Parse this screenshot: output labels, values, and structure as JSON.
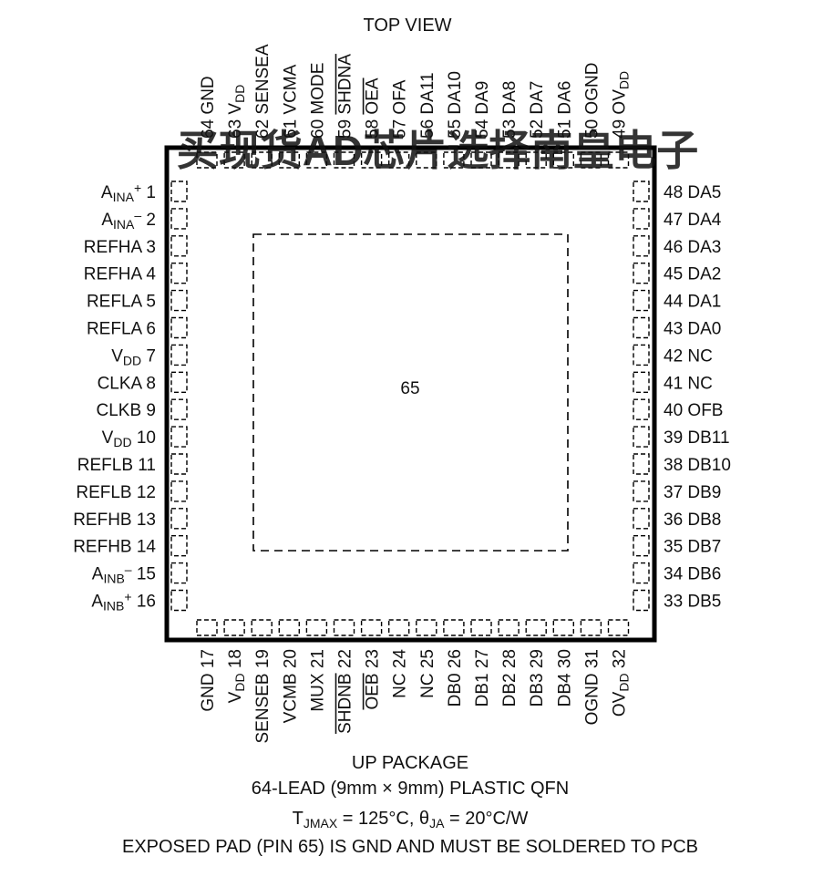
{
  "top_view_label": "TOP VIEW",
  "watermark": "买现货AD芯片选择南皇电子",
  "exposed_pad_label": "65",
  "pins": {
    "left": [
      {
        "segs": [
          [
            "A",
            ""
          ],
          [
            "INA",
            "sub"
          ],
          [
            "+",
            "sup"
          ],
          [
            " 1",
            ""
          ]
        ]
      },
      {
        "segs": [
          [
            "A",
            ""
          ],
          [
            "INA",
            "sub"
          ],
          [
            "–",
            "sup"
          ],
          [
            " 2",
            ""
          ]
        ]
      },
      {
        "segs": [
          [
            "REFHA 3",
            ""
          ]
        ]
      },
      {
        "segs": [
          [
            "REFHA 4",
            ""
          ]
        ]
      },
      {
        "segs": [
          [
            "REFLA 5",
            ""
          ]
        ]
      },
      {
        "segs": [
          [
            "REFLA 6",
            ""
          ]
        ]
      },
      {
        "segs": [
          [
            "V",
            ""
          ],
          [
            "DD",
            "sub"
          ],
          [
            " 7",
            ""
          ]
        ]
      },
      {
        "segs": [
          [
            "CLKA 8",
            ""
          ]
        ]
      },
      {
        "segs": [
          [
            "CLKB 9",
            ""
          ]
        ]
      },
      {
        "segs": [
          [
            "V",
            ""
          ],
          [
            "DD",
            "sub"
          ],
          [
            " 10",
            ""
          ]
        ]
      },
      {
        "segs": [
          [
            "REFLB 11",
            ""
          ]
        ]
      },
      {
        "segs": [
          [
            "REFLB 12",
            ""
          ]
        ]
      },
      {
        "segs": [
          [
            "REFHB 13",
            ""
          ]
        ]
      },
      {
        "segs": [
          [
            "REFHB 14",
            ""
          ]
        ]
      },
      {
        "segs": [
          [
            "A",
            ""
          ],
          [
            "INB",
            "sub"
          ],
          [
            "–",
            "sup"
          ],
          [
            " 15",
            ""
          ]
        ]
      },
      {
        "segs": [
          [
            "A",
            ""
          ],
          [
            "INB",
            "sub"
          ],
          [
            "+",
            "sup"
          ],
          [
            " 16",
            ""
          ]
        ]
      }
    ],
    "right": [
      {
        "segs": [
          [
            "48 DA5",
            ""
          ]
        ]
      },
      {
        "segs": [
          [
            "47 DA4",
            ""
          ]
        ]
      },
      {
        "segs": [
          [
            "46 DA3",
            ""
          ]
        ]
      },
      {
        "segs": [
          [
            "45 DA2",
            ""
          ]
        ]
      },
      {
        "segs": [
          [
            "44 DA1",
            ""
          ]
        ]
      },
      {
        "segs": [
          [
            "43 DA0",
            ""
          ]
        ]
      },
      {
        "segs": [
          [
            "42 NC",
            ""
          ]
        ]
      },
      {
        "segs": [
          [
            "41 NC",
            ""
          ]
        ]
      },
      {
        "segs": [
          [
            "40 OFB",
            ""
          ]
        ]
      },
      {
        "segs": [
          [
            "39 DB11",
            ""
          ]
        ]
      },
      {
        "segs": [
          [
            "38 DB10",
            ""
          ]
        ]
      },
      {
        "segs": [
          [
            "37 DB9",
            ""
          ]
        ]
      },
      {
        "segs": [
          [
            "36 DB8",
            ""
          ]
        ]
      },
      {
        "segs": [
          [
            "35 DB7",
            ""
          ]
        ]
      },
      {
        "segs": [
          [
            "34 DB6",
            ""
          ]
        ]
      },
      {
        "segs": [
          [
            "33 DB5",
            ""
          ]
        ]
      }
    ],
    "top": [
      {
        "segs": [
          [
            "64 GND",
            ""
          ]
        ]
      },
      {
        "segs": [
          [
            "63 V",
            ""
          ],
          [
            "DD",
            "sub"
          ]
        ]
      },
      {
        "segs": [
          [
            "62 SENSEA",
            ""
          ]
        ]
      },
      {
        "segs": [
          [
            "61 VCMA",
            ""
          ]
        ]
      },
      {
        "segs": [
          [
            "60 MODE",
            ""
          ]
        ]
      },
      {
        "segs": [
          [
            "59 SHDNA",
            ""
          ]
        ],
        "overline": "SHDNA"
      },
      {
        "segs": [
          [
            "58 OEA",
            ""
          ]
        ],
        "overline": "OEA"
      },
      {
        "segs": [
          [
            "57 OFA",
            ""
          ]
        ]
      },
      {
        "segs": [
          [
            "56 DA11",
            ""
          ]
        ]
      },
      {
        "segs": [
          [
            "55 DA10",
            ""
          ]
        ]
      },
      {
        "segs": [
          [
            "54 DA9",
            ""
          ]
        ]
      },
      {
        "segs": [
          [
            "53 DA8",
            ""
          ]
        ]
      },
      {
        "segs": [
          [
            "52 DA7",
            ""
          ]
        ]
      },
      {
        "segs": [
          [
            "51 DA6",
            ""
          ]
        ]
      },
      {
        "segs": [
          [
            "50 OGND",
            ""
          ]
        ]
      },
      {
        "segs": [
          [
            "49 OV",
            ""
          ],
          [
            "DD",
            "sub"
          ]
        ]
      }
    ],
    "bottom": [
      {
        "segs": [
          [
            "GND 17",
            ""
          ]
        ]
      },
      {
        "segs": [
          [
            "V",
            ""
          ],
          [
            "DD",
            "sub"
          ],
          [
            " 18",
            ""
          ]
        ]
      },
      {
        "segs": [
          [
            "SENSEB 19",
            ""
          ]
        ]
      },
      {
        "segs": [
          [
            "VCMB 20",
            ""
          ]
        ]
      },
      {
        "segs": [
          [
            "MUX 21",
            ""
          ]
        ]
      },
      {
        "segs": [
          [
            "SHDNB 22",
            ""
          ]
        ],
        "overline": "SHDNB"
      },
      {
        "segs": [
          [
            "OEB 23",
            ""
          ]
        ],
        "overline": "OEB"
      },
      {
        "segs": [
          [
            "NC 24",
            ""
          ]
        ]
      },
      {
        "segs": [
          [
            "NC 25",
            ""
          ]
        ]
      },
      {
        "segs": [
          [
            "DB0 26",
            ""
          ]
        ]
      },
      {
        "segs": [
          [
            "DB1 27",
            ""
          ]
        ]
      },
      {
        "segs": [
          [
            "DB2 28",
            ""
          ]
        ]
      },
      {
        "segs": [
          [
            "DB3 29",
            ""
          ]
        ]
      },
      {
        "segs": [
          [
            "DB4 30",
            ""
          ]
        ]
      },
      {
        "segs": [
          [
            "OGND 31",
            ""
          ]
        ]
      },
      {
        "segs": [
          [
            "OV",
            ""
          ],
          [
            "DD",
            "sub"
          ],
          [
            " 32",
            ""
          ]
        ]
      }
    ]
  },
  "caption": [
    {
      "segs": [
        [
          "UP PACKAGE",
          ""
        ]
      ]
    },
    {
      "segs": [
        [
          "64-LEAD (9mm × 9mm) PLASTIC QFN",
          ""
        ]
      ]
    },
    {
      "segs": [
        [
          "T",
          ""
        ],
        [
          "JMAX",
          "sub"
        ],
        [
          " = 125°C, θ",
          ""
        ],
        [
          "JA",
          "sub"
        ],
        [
          " = 20°C/W",
          ""
        ]
      ]
    },
    {
      "segs": [
        [
          "EXPOSED PAD (PIN 65) IS GND AND MUST BE SOLDERED TO PCB",
          ""
        ]
      ]
    }
  ]
}
